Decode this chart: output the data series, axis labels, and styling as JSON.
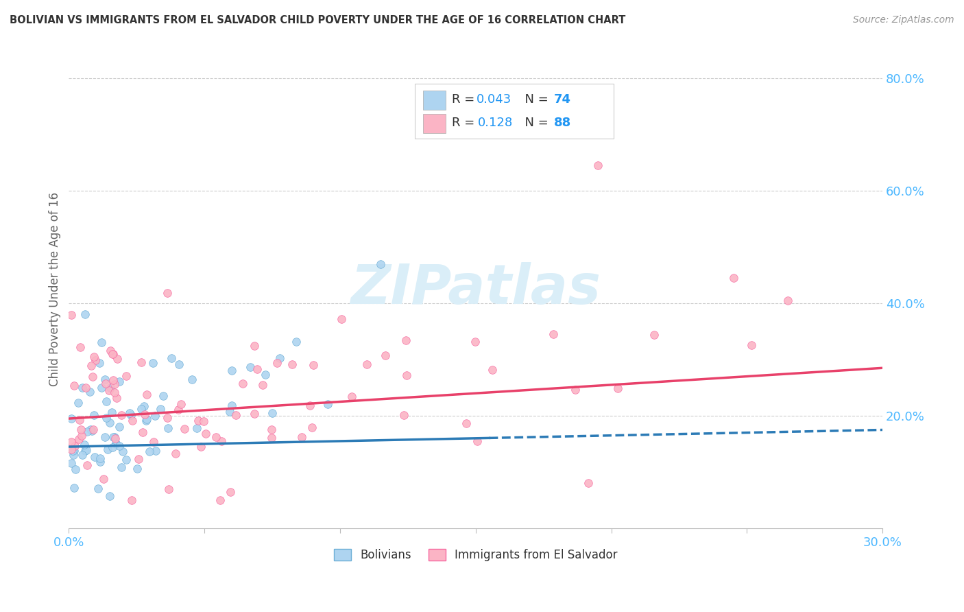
{
  "title": "BOLIVIAN VS IMMIGRANTS FROM EL SALVADOR CHILD POVERTY UNDER THE AGE OF 16 CORRELATION CHART",
  "source": "Source: ZipAtlas.com",
  "ylabel": "Child Poverty Under the Age of 16",
  "xlim": [
    0.0,
    0.3
  ],
  "ylim": [
    0.0,
    0.85
  ],
  "right_yticks": [
    0.2,
    0.4,
    0.6,
    0.8
  ],
  "right_yticklabels": [
    "20.0%",
    "40.0%",
    "60.0%",
    "80.0%"
  ],
  "xtick_labels": [
    "0.0%",
    "",
    "",
    "",
    "",
    "",
    "30.0%"
  ],
  "xtick_vals": [
    0.0,
    0.05,
    0.1,
    0.15,
    0.2,
    0.25,
    0.3
  ],
  "color_blue_fill": "#aed4f0",
  "color_blue_edge": "#6baed6",
  "color_blue_line": "#2c7bb6",
  "color_pink_fill": "#fbb4c5",
  "color_pink_edge": "#f768a1",
  "color_pink_line": "#e8416a",
  "color_grid": "#cccccc",
  "color_tick": "#4db8ff",
  "watermark_color": "#daeef8",
  "blue_R": 0.043,
  "blue_N": 74,
  "pink_R": 0.128,
  "pink_N": 88,
  "blue_line_start_y": 0.145,
  "blue_line_end_y": 0.175,
  "blue_line_dash_start_x": 0.155,
  "pink_line_start_y": 0.195,
  "pink_line_end_y": 0.285,
  "marker_size": 70
}
